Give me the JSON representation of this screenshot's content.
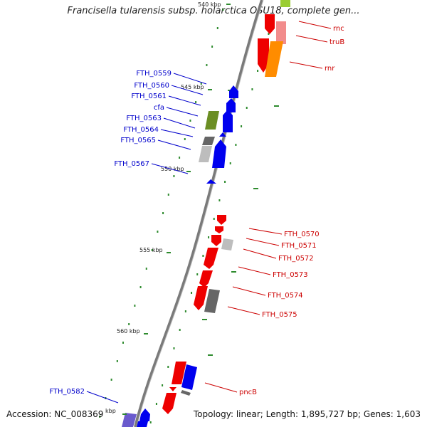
{
  "title": "Francisella tularensis subsp. holarctica OSU18, complete gen...",
  "footer": {
    "accession": "Accession: NC_008369",
    "summary": "Topology: linear; Length: 1,895,727 bp; Genes: 1,603"
  },
  "colors": {
    "backbone": "#7a7a7a",
    "forward_label": "#0000cc",
    "reverse_label": "#cc0000",
    "tick_green": "#2e8b2e",
    "red_gene": "#ee0000",
    "blue_gene": "#0000ee",
    "olive_gene": "#6b8e23",
    "dark_gray_gene": "#666666",
    "light_gray_gene": "#bdbdbd",
    "orange_rna": "#ff8c00",
    "pink_rna": "#f28c8c",
    "lime_rna": "#9acd32",
    "purple_gene": "#6a5acd"
  },
  "scale": {
    "unit": "kbp",
    "ticks": [
      {
        "label": "540 kbp"
      },
      {
        "label": "545 kbp"
      },
      {
        "label": "550 kbp"
      },
      {
        "label": "555 kbp"
      },
      {
        "label": "560 kbp"
      },
      {
        "label": "kbp"
      }
    ]
  },
  "genes_left": [
    {
      "label": "FTH_0559"
    },
    {
      "label": "FTH_0560"
    },
    {
      "label": "FTH_0561"
    },
    {
      "label": "cfa"
    },
    {
      "label": "FTH_0563"
    },
    {
      "label": "FTH_0564"
    },
    {
      "label": "FTH_0565"
    },
    {
      "label": "FTH_0567"
    },
    {
      "label": "FTH_0582"
    }
  ],
  "genes_right": [
    {
      "label": "rnc"
    },
    {
      "label": "truB"
    },
    {
      "label": "rnr"
    },
    {
      "label": "FTH_0570"
    },
    {
      "label": "FTH_0571"
    },
    {
      "label": "FTH_0572"
    },
    {
      "label": "FTH_0573"
    },
    {
      "label": "FTH_0574"
    },
    {
      "label": "FTH_0575"
    },
    {
      "label": "pncB"
    }
  ]
}
